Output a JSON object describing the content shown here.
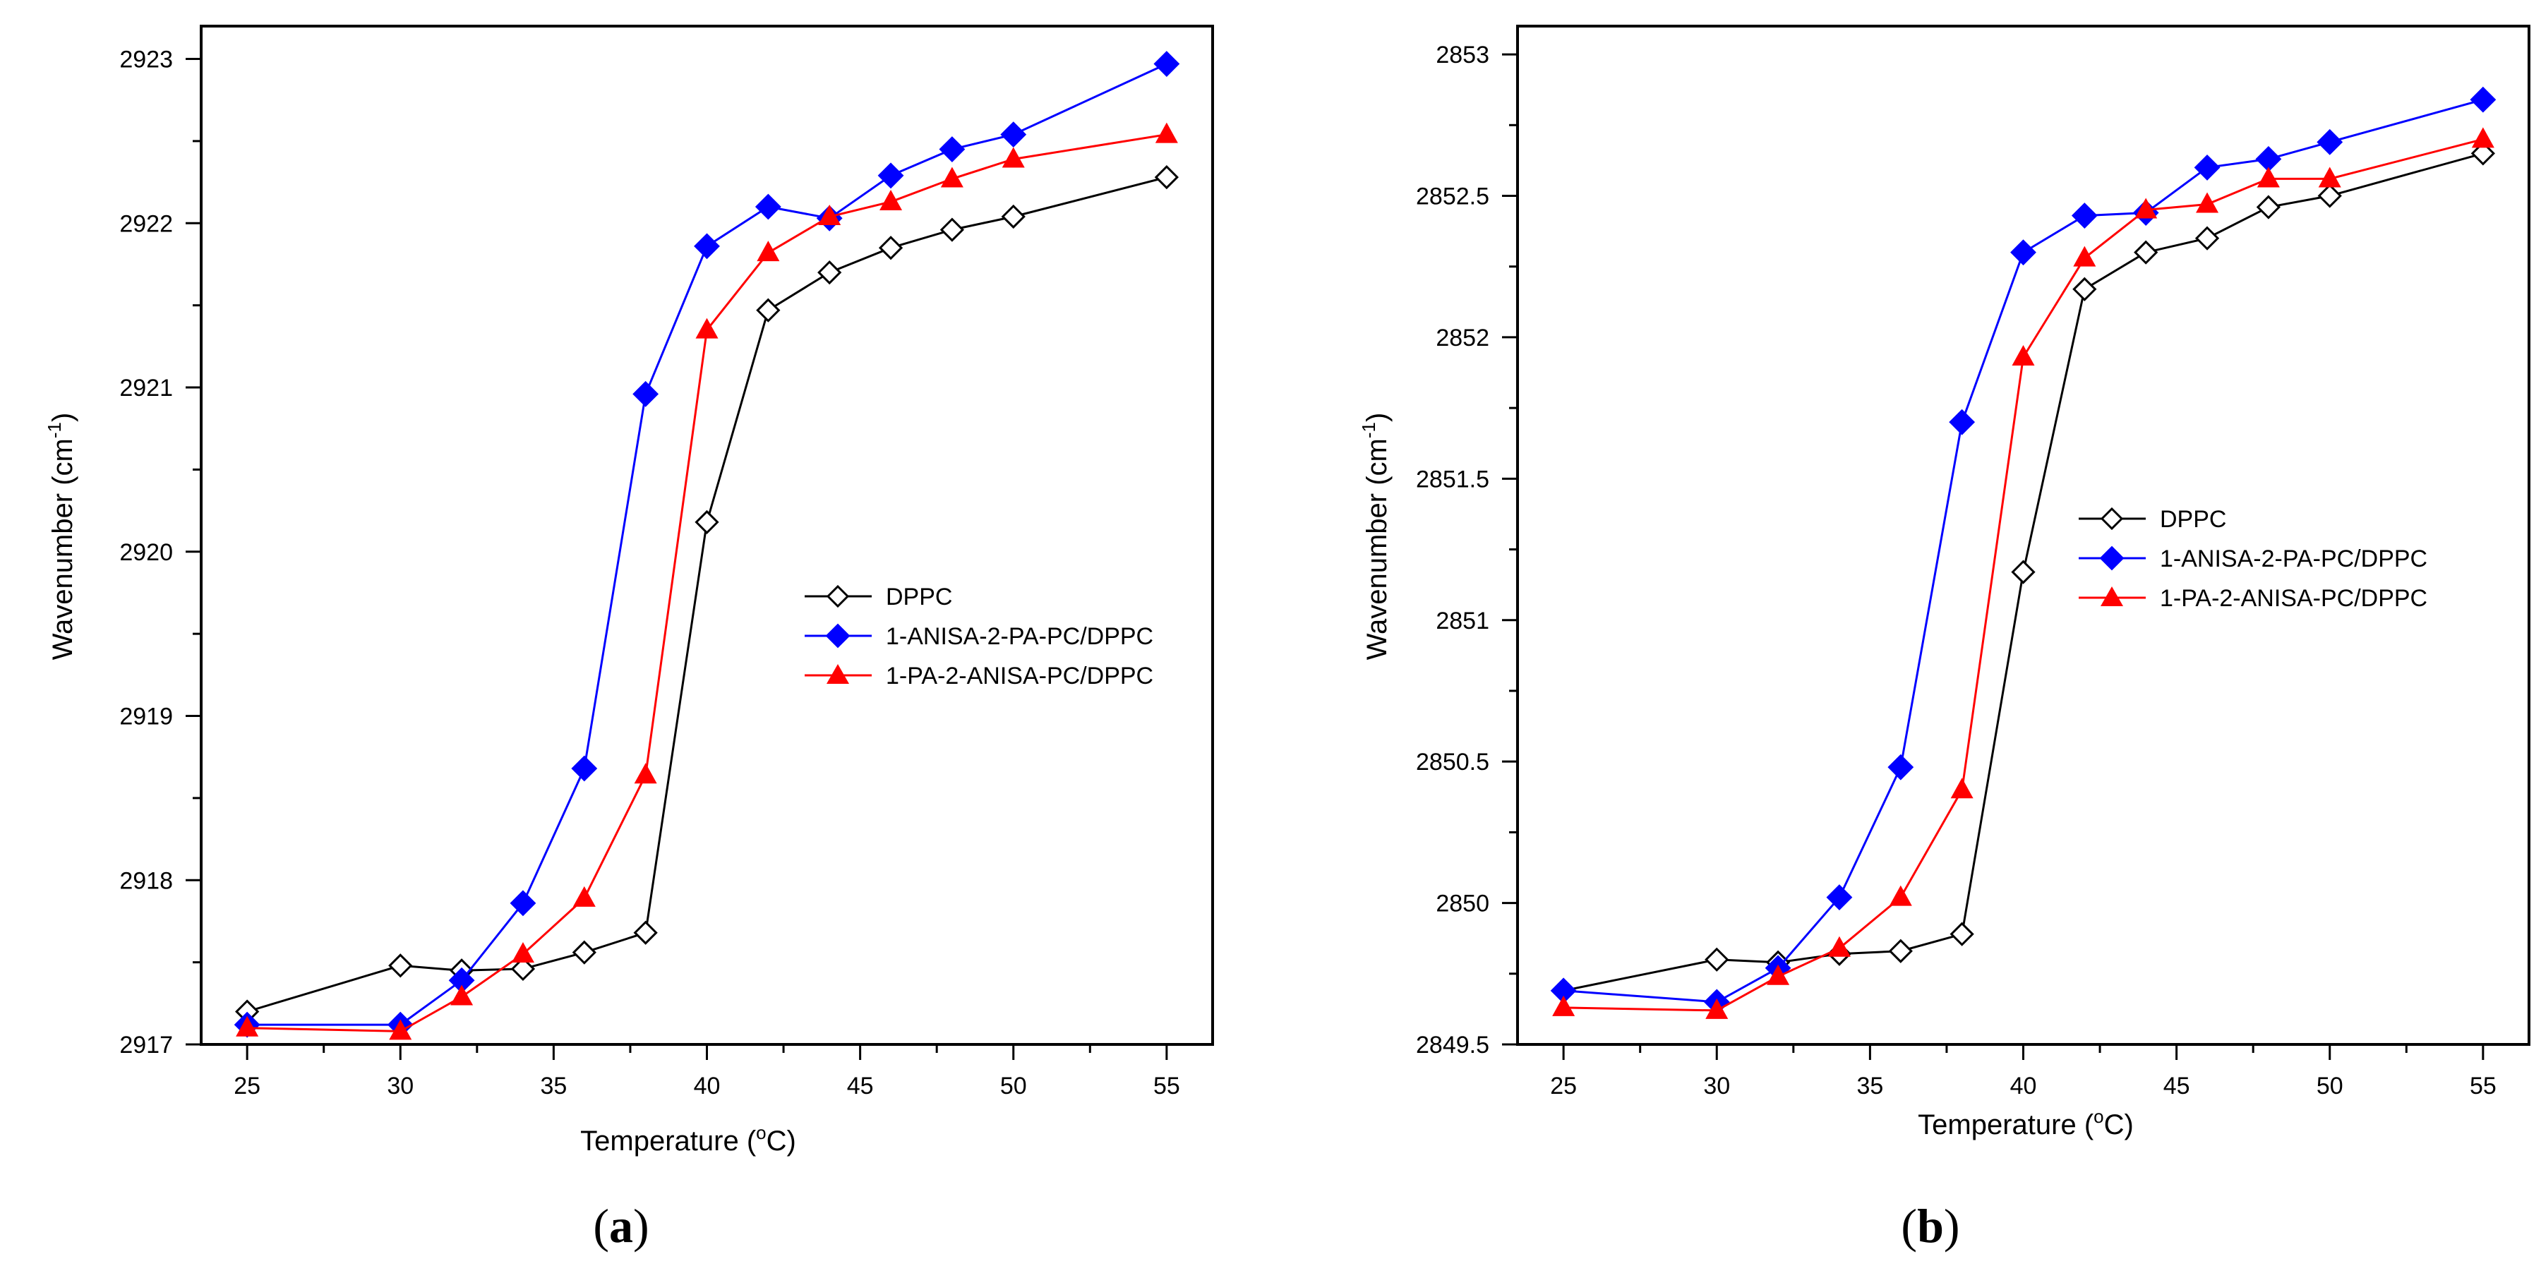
{
  "chart_data": [
    {
      "type": "line",
      "panel_label": {
        "open": "(",
        "letter": "a",
        "close": ")"
      },
      "title": "",
      "xlabel": {
        "main": "Temperature (",
        "sup": "o",
        "unit": "C)"
      },
      "ylabel": {
        "main": "Wavenumber (cm",
        "sup": "-1",
        "close": ")"
      },
      "xlim": [
        23.5,
        56.5
      ],
      "ylim": [
        2917,
        2923.2
      ],
      "xticks": [
        25,
        30,
        35,
        40,
        45,
        50,
        55
      ],
      "yticks": [
        2917,
        2918,
        2919,
        2920,
        2921,
        2922,
        2923
      ],
      "legend_position": "center-right",
      "series": [
        {
          "name": "DPPC",
          "color": "#000000",
          "marker": "diamond-open",
          "x": [
            25,
            30,
            32,
            34,
            36,
            38,
            40,
            42,
            44,
            46,
            48,
            50,
            55
          ],
          "y": [
            2917.2,
            2917.48,
            2917.45,
            2917.46,
            2917.56,
            2917.68,
            2920.18,
            2921.47,
            2921.7,
            2921.85,
            2921.96,
            2922.04,
            2922.28
          ]
        },
        {
          "name": "1-ANISA-2-PA-PC/DPPC",
          "color": "#0000ff",
          "marker": "diamond-filled",
          "x": [
            25,
            30,
            32,
            34,
            36,
            38,
            40,
            42,
            44,
            46,
            48,
            50,
            55
          ],
          "y": [
            2917.12,
            2917.12,
            2917.39,
            2917.86,
            2918.68,
            2920.96,
            2921.86,
            2922.1,
            2922.03,
            2922.29,
            2922.45,
            2922.54,
            2922.97
          ]
        },
        {
          "name": "1-PA-2-ANISA-PC/DPPC",
          "color": "#ff0000",
          "marker": "triangle-filled",
          "x": [
            25,
            30,
            32,
            34,
            36,
            38,
            40,
            42,
            44,
            46,
            48,
            50,
            55
          ],
          "y": [
            2917.1,
            2917.08,
            2917.29,
            2917.55,
            2917.89,
            2918.64,
            2921.35,
            2921.82,
            2922.04,
            2922.13,
            2922.27,
            2922.39,
            2922.54
          ]
        }
      ]
    },
    {
      "type": "line",
      "panel_label": {
        "open": "(",
        "letter": "b",
        "close": ")"
      },
      "title": "",
      "xlabel": {
        "main": "Temperature (",
        "sup": "o",
        "unit": "C)"
      },
      "ylabel": {
        "main": "Wavenumber (cm",
        "sup": "-1",
        "close": ")"
      },
      "xlim": [
        23.5,
        56.5
      ],
      "ylim": [
        2849.5,
        2853.1
      ],
      "xticks": [
        25,
        30,
        35,
        40,
        45,
        50,
        55
      ],
      "yticks": [
        2849.5,
        2850,
        2850.5,
        2851,
        2851.5,
        2852,
        2852.5,
        2853
      ],
      "legend_position": "center-right",
      "series": [
        {
          "name": "DPPC",
          "color": "#000000",
          "marker": "diamond-open",
          "x": [
            25,
            30,
            32,
            34,
            36,
            38,
            40,
            42,
            44,
            46,
            48,
            50,
            55
          ],
          "y": [
            2849.69,
            2849.8,
            2849.79,
            2849.82,
            2849.83,
            2849.89,
            2851.17,
            2852.17,
            2852.3,
            2852.35,
            2852.46,
            2852.5,
            2852.65
          ]
        },
        {
          "name": "1-ANISA-2-PA-PC/DPPC",
          "color": "#0000ff",
          "marker": "diamond-filled",
          "x": [
            25,
            30,
            32,
            34,
            36,
            38,
            40,
            42,
            44,
            46,
            48,
            50,
            55
          ],
          "y": [
            2849.69,
            2849.65,
            2849.77,
            2850.02,
            2850.48,
            2851.7,
            2852.3,
            2852.43,
            2852.44,
            2852.6,
            2852.63,
            2852.69,
            2852.84
          ]
        },
        {
          "name": "1-PA-2-ANISA-PC/DPPC",
          "color": "#ff0000",
          "marker": "triangle-filled",
          "x": [
            25,
            30,
            32,
            34,
            36,
            38,
            40,
            42,
            44,
            46,
            48,
            50,
            55
          ],
          "y": [
            2849.63,
            2849.62,
            2849.74,
            2849.84,
            2850.02,
            2850.4,
            2851.93,
            2852.28,
            2852.45,
            2852.47,
            2852.56,
            2852.56,
            2852.7
          ]
        }
      ]
    }
  ]
}
